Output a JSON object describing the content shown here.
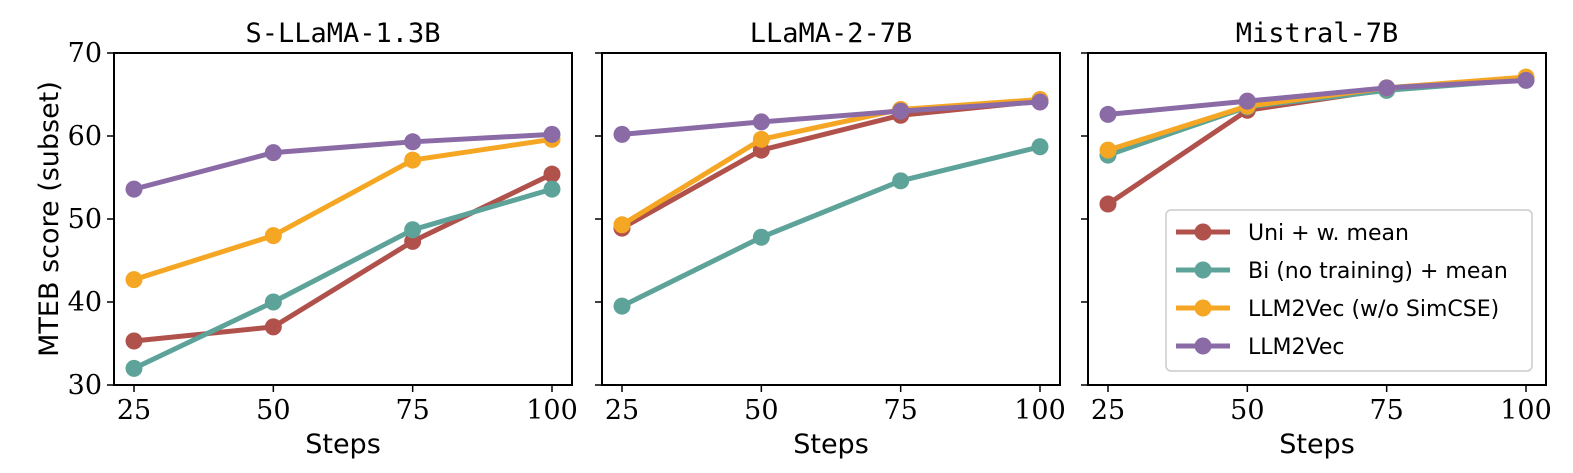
{
  "chart_data": [
    {
      "type": "line",
      "title": "S-LLaMA-1.3B",
      "xlabel": "Steps",
      "ylabel": "MTEB score (subset)",
      "x": [
        25,
        50,
        75,
        100
      ],
      "xticks": [
        "25",
        "50",
        "75",
        "100"
      ],
      "ylim": [
        30,
        70
      ],
      "yticks": [
        "30",
        "40",
        "50",
        "60",
        "70"
      ],
      "grid": false,
      "series": [
        {
          "name": "Uni + w. mean",
          "color": "#b0514b",
          "values": [
            35.3,
            37.0,
            47.3,
            55.4
          ]
        },
        {
          "name": "Bi (no training) + mean",
          "color": "#5da399",
          "values": [
            32.0,
            40.0,
            48.7,
            53.6
          ]
        },
        {
          "name": "LLM2Vec (w/o SimCSE)",
          "color": "#f5a623",
          "values": [
            42.7,
            48.0,
            57.1,
            59.6
          ]
        },
        {
          "name": "LLM2Vec",
          "color": "#8b6ba6",
          "values": [
            53.6,
            58.0,
            59.3,
            60.2
          ]
        }
      ]
    },
    {
      "type": "line",
      "title": "LLaMA-2-7B",
      "xlabel": "Steps",
      "ylabel": "",
      "x": [
        25,
        50,
        75,
        100
      ],
      "xticks": [
        "25",
        "50",
        "75",
        "100"
      ],
      "ylim": [
        30,
        70
      ],
      "grid": false,
      "series": [
        {
          "name": "Uni + w. mean",
          "color": "#b0514b",
          "values": [
            48.9,
            58.3,
            62.5,
            64.2
          ]
        },
        {
          "name": "Bi (no training) + mean",
          "color": "#5da399",
          "values": [
            39.5,
            47.8,
            54.6,
            58.7
          ]
        },
        {
          "name": "LLM2Vec (w/o SimCSE)",
          "color": "#f5a623",
          "values": [
            49.3,
            59.6,
            63.2,
            64.4
          ]
        },
        {
          "name": "LLM2Vec",
          "color": "#8b6ba6",
          "values": [
            60.2,
            61.7,
            63.0,
            64.1
          ]
        }
      ]
    },
    {
      "type": "line",
      "title": "Mistral-7B",
      "xlabel": "Steps",
      "ylabel": "",
      "x": [
        25,
        50,
        75,
        100
      ],
      "xticks": [
        "25",
        "50",
        "75",
        "100"
      ],
      "ylim": [
        30,
        70
      ],
      "grid": false,
      "legend": "lower-right",
      "series": [
        {
          "name": "Uni + w. mean",
          "color": "#b0514b",
          "values": [
            51.8,
            63.1,
            65.6,
            66.8
          ]
        },
        {
          "name": "Bi (no training) + mean",
          "color": "#5da399",
          "values": [
            57.7,
            63.5,
            65.5,
            66.8
          ]
        },
        {
          "name": "LLM2Vec (w/o SimCSE)",
          "color": "#f5a623",
          "values": [
            58.3,
            63.6,
            65.8,
            67.1
          ]
        },
        {
          "name": "LLM2Vec",
          "color": "#8b6ba6",
          "values": [
            62.6,
            64.2,
            65.8,
            66.7
          ]
        }
      ]
    }
  ]
}
